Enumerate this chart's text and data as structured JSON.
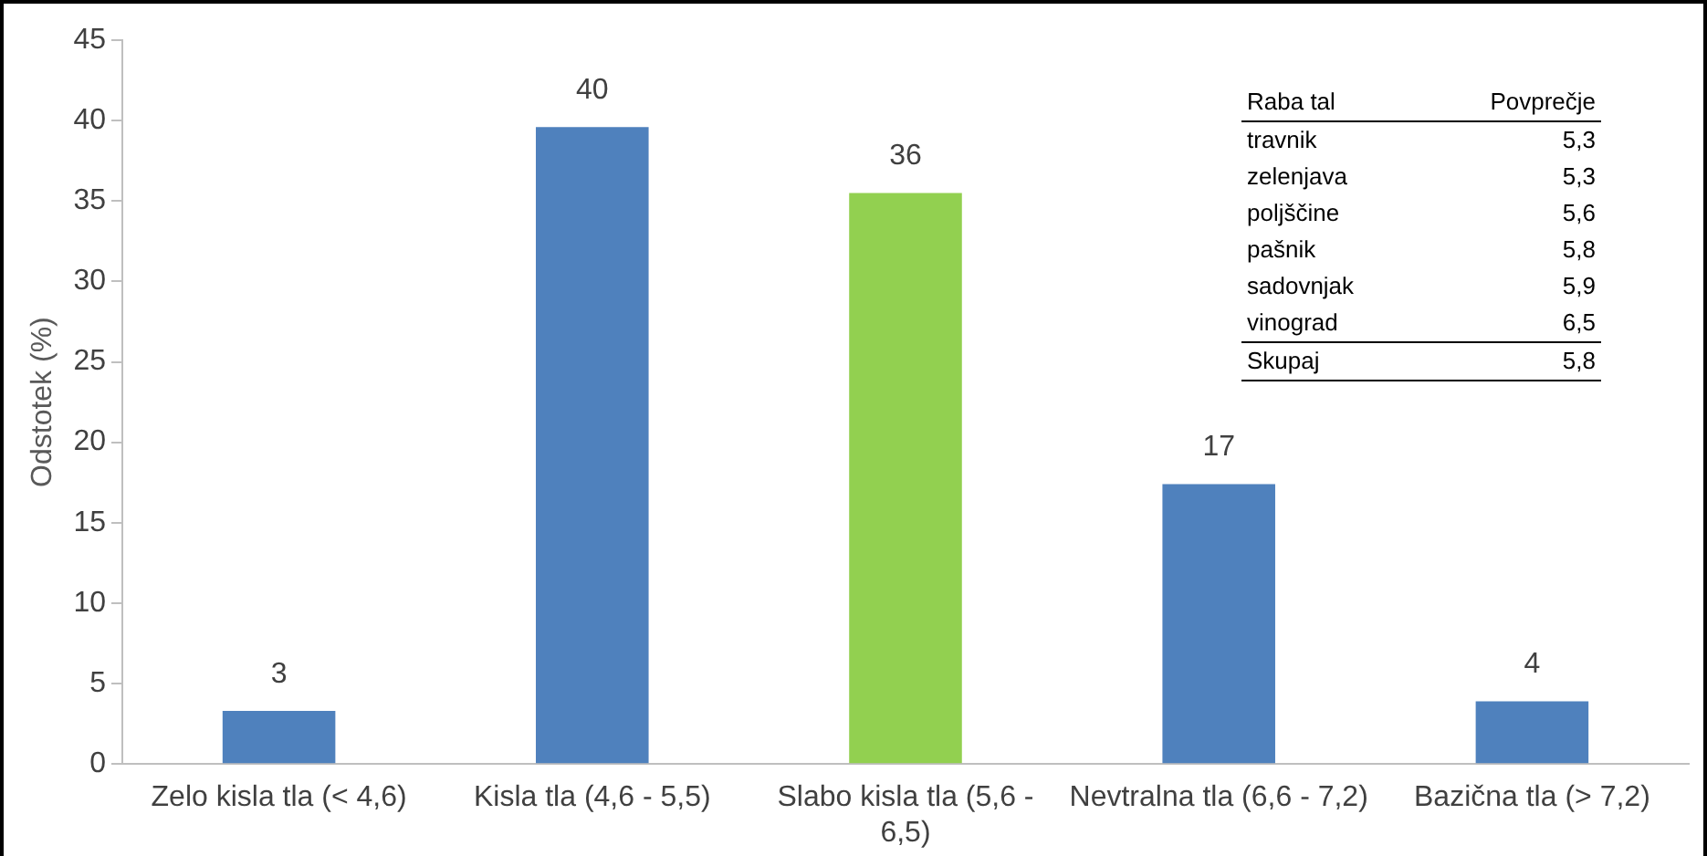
{
  "chart_data": {
    "type": "bar",
    "ylabel": "Odstotek (%)",
    "categories": [
      "Zelo kisla tla (< 4,6)",
      "Kisla tla (4,6 - 5,5)",
      "Slabo kisla tla (5,6 - 6,5)",
      "Nevtralna tla (6,6 - 7,2)",
      "Bazična tla (> 7,2)"
    ],
    "values": [
      3.3,
      39.6,
      35.5,
      17.4,
      3.9
    ],
    "value_labels": [
      "3",
      "40",
      "36",
      "17",
      "4"
    ],
    "colors": [
      "#4f81bd",
      "#4f81bd",
      "#92d050",
      "#4f81bd",
      "#4f81bd"
    ],
    "ylim": [
      0,
      45
    ],
    "yticks": [
      0,
      5,
      10,
      15,
      20,
      25,
      30,
      35,
      40,
      45
    ],
    "grid": false,
    "legend": false,
    "annotations": [
      "Raba tal",
      "Povprečje",
      "travnik",
      "5,3",
      "zelenjava",
      "5,3",
      "poljščine",
      "5,6",
      "pašnik",
      "5,8",
      "sadovnjak",
      "5,9",
      "vinograd",
      "6,5",
      "Skupaj",
      "5,8"
    ]
  }
}
